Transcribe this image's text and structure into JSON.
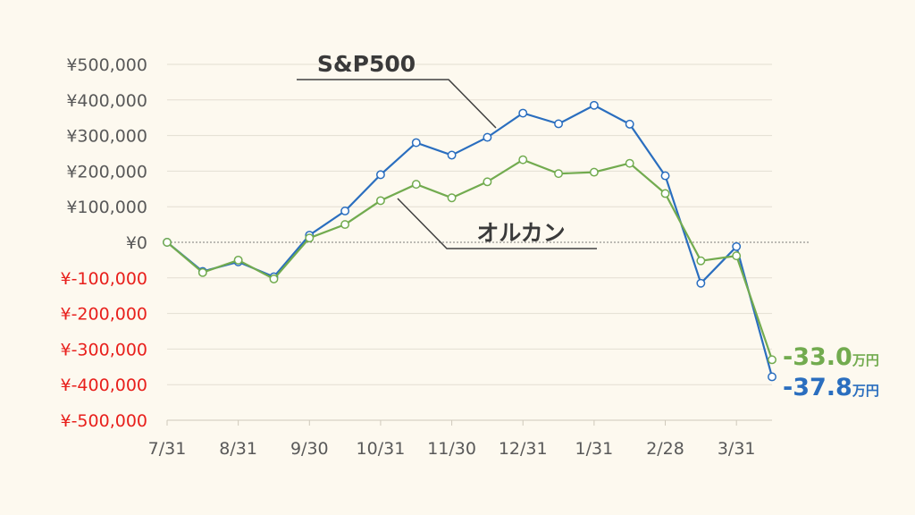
{
  "chart_data": {
    "type": "line",
    "title": "",
    "xlabel": "",
    "ylabel": "",
    "ylim": [
      -500000,
      500000
    ],
    "grid": true,
    "y_ticks": [
      {
        "value": 500000,
        "label": "¥500,000"
      },
      {
        "value": 400000,
        "label": "¥400,000"
      },
      {
        "value": 300000,
        "label": "¥300,000"
      },
      {
        "value": 200000,
        "label": "¥200,000"
      },
      {
        "value": 100000,
        "label": "¥100,000"
      },
      {
        "value": 0,
        "label": "¥0"
      },
      {
        "value": -100000,
        "label": "¥-100,000"
      },
      {
        "value": -200000,
        "label": "¥-200,000"
      },
      {
        "value": -300000,
        "label": "¥-300,000"
      },
      {
        "value": -400000,
        "label": "¥-400,000"
      },
      {
        "value": -500000,
        "label": "¥-500,000"
      }
    ],
    "x_ticks": [
      "7/31",
      "8/31",
      "9/30",
      "10/31",
      "11/30",
      "12/31",
      "1/31",
      "2/28",
      "3/31"
    ],
    "x_tick_index": [
      0,
      2,
      4,
      6,
      8,
      10,
      12,
      14,
      16
    ],
    "positive_color": "#595959",
    "negative_color": "#e8201c",
    "series": [
      {
        "name": "S&P500",
        "color": "#2a6ebf",
        "values": [
          0,
          -82000,
          -55000,
          -97000,
          20000,
          88000,
          190000,
          280000,
          245000,
          295000,
          363000,
          333000,
          385000,
          332000,
          187000,
          -115000,
          -12000,
          -378000
        ],
        "end_value": "-37.8",
        "end_unit": "万円"
      },
      {
        "name": "オルカン",
        "color": "#72ab4f",
        "values": [
          0,
          -85000,
          -50000,
          -103000,
          12000,
          50000,
          117000,
          163000,
          125000,
          170000,
          232000,
          193000,
          197000,
          222000,
          137000,
          -52000,
          -38000,
          -330000
        ],
        "end_value": "-33.0",
        "end_unit": "万円"
      }
    ]
  }
}
